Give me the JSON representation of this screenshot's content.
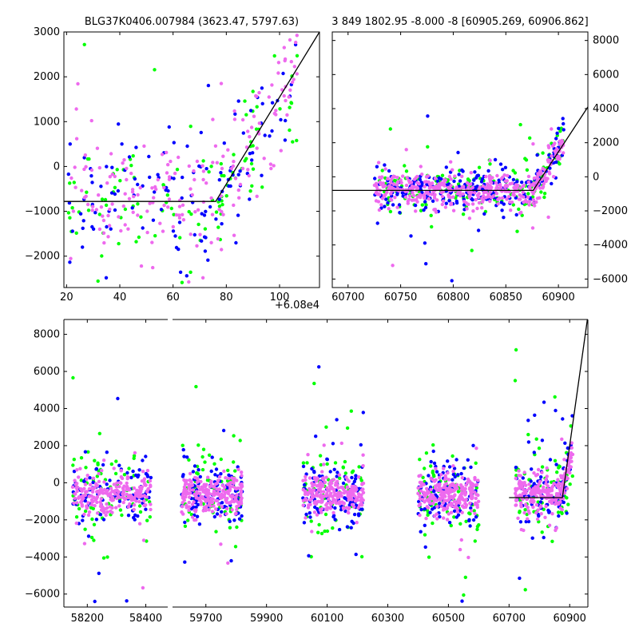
{
  "figure": {
    "background": "#ffffff",
    "axis_color": "#000000",
    "series_colors": {
      "green": "#00ff00",
      "blue": "#0000ff",
      "pink": "#ee6aee"
    },
    "model_line_color": "#000000"
  },
  "chart_data": [
    {
      "id": "top-left",
      "type": "scatter",
      "title": "BLG37K0406.007984 (3623.47, 5797.63)",
      "x_offset_label": "+6.08e4",
      "xlim": [
        19,
        115
      ],
      "ylim": [
        -2700,
        3000
      ],
      "xticks": [
        20,
        40,
        60,
        80,
        100
      ],
      "yticks": [
        -2000,
        -1000,
        0,
        1000,
        2000,
        3000
      ],
      "ytick_side": "left",
      "model_line": {
        "x": [
          19,
          76,
          115
        ],
        "y": [
          -780,
          -780,
          3000
        ]
      },
      "series": [
        {
          "name": "green",
          "color": "#00ff00",
          "n": 110,
          "x_range": [
            20,
            107
          ],
          "base": -700,
          "spread": 650,
          "outliers": 0.12
        },
        {
          "name": "blue",
          "color": "#0000ff",
          "n": 130,
          "x_range": [
            20,
            107
          ],
          "base": -650,
          "spread": 650,
          "outliers": 0.12
        },
        {
          "name": "pink",
          "color": "#ee6aee",
          "n": 190,
          "x_range": [
            20,
            107
          ],
          "base": -650,
          "spread": 600,
          "outliers": 0.1
        }
      ]
    },
    {
      "id": "top-right",
      "type": "scatter",
      "title": "3 849 1802.95 -8.000 -8 [60905.269, 60906.862]",
      "xlim": [
        60685,
        60928
      ],
      "ylim": [
        -6500,
        8500
      ],
      "xticks": [
        60700,
        60750,
        60800,
        60850,
        60900
      ],
      "yticks": [
        -6000,
        -4000,
        -2000,
        0,
        2000,
        4000,
        6000,
        8000
      ],
      "ytick_side": "right",
      "model_line": {
        "x": [
          60685,
          60876,
          60928
        ],
        "y": [
          -800,
          -800,
          4100
        ]
      },
      "series": [
        {
          "name": "green",
          "color": "#00ff00",
          "n": 180,
          "x_range": [
            60725,
            60905
          ],
          "base": -700,
          "spread": 700,
          "outliers": 0.1
        },
        {
          "name": "blue",
          "color": "#0000ff",
          "n": 240,
          "x_range": [
            60725,
            60905
          ],
          "base": -650,
          "spread": 650,
          "outliers": 0.1
        },
        {
          "name": "pink",
          "color": "#ee6aee",
          "n": 420,
          "x_range": [
            60725,
            60905
          ],
          "base": -650,
          "spread": 500,
          "outliers": 0.06
        }
      ]
    },
    {
      "id": "bottom",
      "type": "scatter",
      "title": "",
      "xlim": [
        58120,
        58475
      ],
      "ylim": [
        -6700,
        8800
      ],
      "xticks": [
        58200,
        58400,
        59700,
        59900,
        60100,
        60300,
        60500,
        60700,
        60900
      ],
      "yticks": [
        -6000,
        -4000,
        -2000,
        0,
        2000,
        4000,
        6000,
        8000
      ],
      "ytick_side": "left",
      "broken_axis": true,
      "segments": [
        {
          "name": "seg-1",
          "xlim": [
            58120,
            58475
          ],
          "ticks": [
            58200,
            58400
          ]
        },
        {
          "name": "seg-2",
          "xlim": [
            59590,
            60960
          ],
          "ticks": [
            59700,
            59900,
            60100,
            60300,
            60500,
            60700,
            60900
          ]
        }
      ],
      "clusters": [
        {
          "x_range": [
            58150,
            58420
          ],
          "seg": 0
        },
        {
          "x_range": [
            59620,
            59820
          ],
          "seg": 1
        },
        {
          "x_range": [
            60020,
            60220
          ],
          "seg": 1
        },
        {
          "x_range": [
            60400,
            60600
          ],
          "seg": 1
        },
        {
          "x_range": [
            60720,
            60910
          ],
          "seg": 1
        }
      ],
      "model_line": {
        "seg": 1,
        "x": [
          60700,
          60876,
          60960
        ],
        "y": [
          -800,
          -800,
          9000
        ]
      },
      "series": [
        {
          "name": "green",
          "color": "#00ff00",
          "n_per_cluster": 75,
          "base": -700,
          "spread": 1100,
          "outliers": 0.18
        },
        {
          "name": "blue",
          "color": "#0000ff",
          "n_per_cluster": 110,
          "base": -600,
          "spread": 800,
          "outliers": 0.12
        },
        {
          "name": "pink",
          "color": "#ee6aee",
          "n_per_cluster": 230,
          "base": -500,
          "spread": 500,
          "outliers": 0.06
        }
      ]
    }
  ]
}
